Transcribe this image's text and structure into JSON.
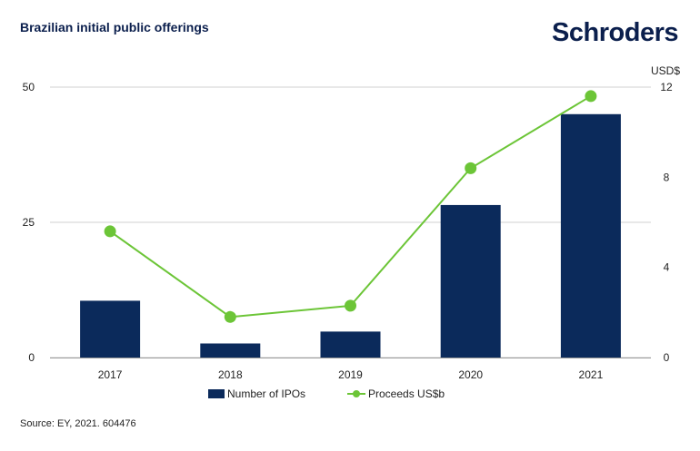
{
  "header": {
    "title": "Brazilian initial public offerings",
    "logo_text": "Schroders"
  },
  "footer": {
    "source": "Source: EY, 2021. 604476"
  },
  "colors": {
    "bar": "#0b2a5b",
    "line": "#6cc537",
    "grid": "#d0d0d0",
    "axis": "#9a9a9a"
  },
  "chart_data": {
    "type": "bar",
    "title": "Brazilian initial public offerings",
    "categories": [
      "2017",
      "2018",
      "2019",
      "2020",
      "2021"
    ],
    "series": [
      {
        "name": "Number of IPOs",
        "type": "bar",
        "axis": "left",
        "values": [
          10.5,
          2.6,
          4.8,
          28.2,
          45
        ]
      },
      {
        "name": "Proceeds US$b",
        "type": "line",
        "axis": "right",
        "values": [
          5.6,
          1.8,
          2.3,
          8.4,
          11.6
        ]
      }
    ],
    "y_left": {
      "ylim": [
        0,
        50
      ],
      "ticks": [
        "0",
        "25",
        "50"
      ],
      "label": ""
    },
    "y_right": {
      "ylim": [
        0,
        12
      ],
      "ticks": [
        "0",
        "4",
        "8",
        "12"
      ],
      "label": "USD$"
    },
    "grid": true,
    "legend": "bottom-center"
  }
}
